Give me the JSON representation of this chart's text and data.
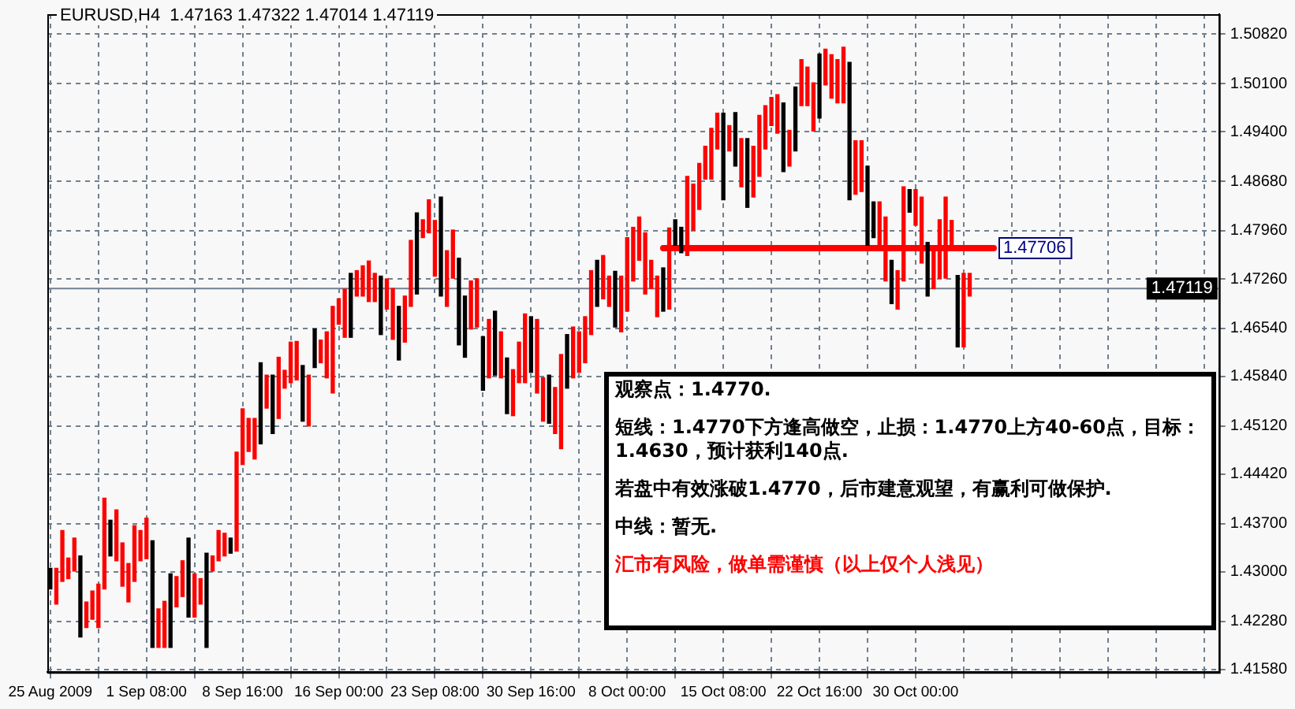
{
  "chart_data": {
    "type": "bar",
    "title": "EURUSD,H4  1.47163 1.47322 1.47014 1.47119",
    "categories": [
      "25 Aug 2009",
      null,
      null,
      null,
      null,
      null,
      null,
      null,
      null,
      null,
      null,
      null,
      null,
      null,
      null,
      null,
      "1 Sep 08:00",
      null,
      null,
      null,
      null,
      null,
      null,
      null,
      null,
      null,
      null,
      null,
      null,
      null,
      null,
      null,
      "8 Sep 16:00",
      null,
      null,
      null,
      null,
      null,
      null,
      null,
      null,
      null,
      null,
      null,
      null,
      null,
      null,
      null,
      "16 Sep 00:00",
      null,
      null,
      null,
      null,
      null,
      null,
      null,
      null,
      null,
      null,
      null,
      null,
      null,
      null,
      null,
      "23 Sep 08:00",
      null,
      null,
      null,
      null,
      null,
      null,
      null,
      null,
      null,
      null,
      null,
      null,
      null,
      null,
      null,
      "30 Sep 16:00",
      null,
      null,
      null,
      null,
      null,
      null,
      null,
      null,
      null,
      null,
      null,
      null,
      null,
      null,
      null,
      "8 Oct 00:00",
      null,
      null,
      null,
      null,
      null,
      null,
      null,
      null,
      null,
      null,
      null,
      null,
      null,
      null,
      null,
      "15 Oct 08:00",
      null,
      null,
      null,
      null,
      null,
      null,
      null,
      null,
      null,
      null,
      null,
      null,
      null,
      null,
      null,
      "22 Oct 16:00",
      null,
      null,
      null,
      null,
      null,
      null,
      null,
      null,
      null,
      null,
      null,
      null,
      null,
      null,
      null,
      "30 Oct 00:00",
      null,
      null,
      null,
      null,
      null,
      null,
      null,
      null,
      null,
      null,
      null,
      null,
      null,
      null,
      null,
      null,
      null,
      null,
      null,
      null,
      null,
      null,
      null,
      null,
      null,
      null,
      null,
      null,
      null,
      null,
      null,
      null,
      null,
      null,
      null,
      null,
      null,
      null,
      null,
      null,
      null,
      null,
      null,
      null,
      null,
      null,
      null,
      null,
      null,
      null
    ],
    "series": [
      {
        "values": [
          0.003,
          0.0052,
          0.0074,
          0.003,
          0.0048,
          0.0118,
          0.0037,
          0.0041,
          0.0063,
          0.0132,
          0.0052,
          0.0074,
          0.0063,
          0.0056,
          0.0081,
          0.0044,
          0.0059,
          0.0155,
          0.0056,
          0.0067,
          0.0107,
          0.0044,
          0.0052,
          0.0115,
          0.0063,
          0.0037,
          0.0137,
          0.0022,
          0.0044,
          0.0033,
          0.0022,
          0.0144,
          0.0081,
          0.0048,
          0.0059,
          0.0118,
          0.0048,
          0.0085,
          0.0089,
          0.0026,
          0.0059,
          0.0056,
          0.0081,
          0.0074,
          0.0056,
          0.0033,
          0.0067,
          0.0126,
          0.0037,
          0.007,
          0.0093,
          0.0037,
          0.0044,
          0.0059,
          0.0041,
          0.0085,
          0.0044,
          0.0074,
          0.0078,
          0.0067,
          0.0096,
          0.0118,
          0.0026,
          0.0048,
          0.0081,
          0.0144,
          0.0081,
          0.007,
          0.0126,
          0.0089,
          0.007,
          0.007,
          0.0078,
          0.0085,
          0.0093,
          0.0067,
          0.0081,
          0.0067,
          0.0059,
          0.01,
          0.0081,
          0.0107,
          0.0063,
          0.007,
          0.0067,
          0.0137,
          0.0078,
          0.0074,
          0.0059,
          0.0067,
          0.0093,
          0.0067,
          0.0063,
          0.0044,
          0.0081,
          0.0081,
          0.0107,
          0.0078,
          0.0063,
          0.0089,
          0.0041,
          0.0059,
          0.0063,
          0.0118,
          0.0037,
          0.0037,
          0.0115,
          0.0067,
          0.0067,
          0.0048,
          0.0074,
          0.0052,
          0.0126,
          0.0037,
          0.0078,
          0.007,
          0.01,
          0.0074,
          0.0089,
          0.0063,
          0.0041,
          0.0056,
          0.01,
          0.0052,
          0.0093,
          0.0067,
          0.0056,
          0.007,
          0.0093,
          0.0052,
          0.0063,
          0.0063,
          0.0081,
          0.02,
          0.0078,
          0.0074,
          0.0115,
          0.0052,
          0.0067,
          0.0093,
          0.0063,
          0.0056,
          0.0137,
          0.0033,
          0.0052,
          0.0096,
          0.0078,
          0.0056,
          0.0085,
          0.0118,
          0.0044,
          0.0104,
          0.0107,
          0.0033,
          null,
          null,
          null,
          null,
          null,
          null,
          null,
          null,
          null,
          null,
          null,
          null,
          null,
          null,
          null,
          null,
          null,
          null,
          null,
          null,
          null,
          null,
          null,
          null,
          null,
          null,
          null,
          null,
          null,
          null,
          null,
          null,
          null,
          null,
          null,
          null,
          null,
          null,
          null,
          null,
          null
        ],
        "base": [
          1.4275,
          1.4253,
          1.4286,
          1.429,
          1.4301,
          1.4205,
          1.4219,
          1.4231,
          1.4219,
          1.4275,
          1.4323,
          1.4316,
          1.4279,
          1.4256,
          1.4286,
          1.4316,
          1.4319,
          1.419,
          1.419,
          1.419,
          1.419,
          1.4249,
          1.4264,
          1.4234,
          1.4234,
          1.4253,
          1.419,
          1.4301,
          1.4316,
          1.4323,
          1.4327,
          1.433,
          1.4456,
          1.4475,
          1.4464,
          1.4486,
          1.4538,
          1.4501,
          1.4523,
          1.4567,
          1.4575,
          1.4579,
          1.4519,
          1.4512,
          1.4597,
          1.4604,
          1.4582,
          1.456,
          1.466,
          1.4641,
          1.4641,
          1.4701,
          1.4701,
          1.4693,
          1.4693,
          1.4645,
          1.4682,
          1.4638,
          1.4608,
          1.4634,
          1.4686,
          1.4704,
          1.4786,
          1.4793,
          1.473,
          1.4701,
          1.4686,
          1.4727,
          1.463,
          1.4612,
          1.4653,
          1.4656,
          1.4564,
          1.4582,
          1.4586,
          1.4582,
          1.453,
          1.4527,
          1.4575,
          1.4575,
          1.459,
          1.456,
          1.4519,
          1.4516,
          1.4501,
          1.4479,
          1.4567,
          1.4582,
          1.459,
          1.4604,
          1.4645,
          1.4686,
          1.4697,
          1.4686,
          1.4656,
          1.4649,
          1.4679,
          1.4723,
          1.4753,
          1.4704,
          1.4712,
          1.4671,
          1.4679,
          1.4682,
          1.4775,
          1.4764,
          1.476,
          1.4797,
          1.4827,
          1.4871,
          1.4871,
          1.4915,
          1.4841,
          1.4912,
          1.489,
          1.486,
          1.483,
          1.4845,
          1.4875,
          1.4915,
          1.4949,
          1.4938,
          1.4882,
          1.489,
          1.4912,
          1.4978,
          1.4978,
          1.4941,
          1.496,
          1.5008,
          1.4989,
          1.4982,
          1.4982,
          1.4841,
          1.4849,
          1.4853,
          1.4775,
          1.4786,
          1.4771,
          1.4723,
          1.469,
          1.4682,
          1.4723,
          1.4823,
          1.4804,
          1.4749,
          1.4701,
          1.4712,
          1.4727,
          1.4727,
          1.4767,
          1.4627,
          1.4627,
          1.4701,
          null,
          null,
          null,
          null,
          null,
          null,
          null,
          null,
          null,
          null,
          null,
          null,
          null,
          null,
          null,
          null,
          null,
          null,
          null,
          null,
          null,
          null,
          null,
          null,
          null,
          null,
          null,
          null,
          null,
          null,
          null,
          null,
          null,
          null,
          null,
          null,
          null,
          null,
          null,
          null,
          null
        ],
        "colors": [
          "#000000",
          "#ff0000",
          "#ff0000",
          "#ff0000",
          "#ff0000",
          "#000000",
          "#ff0000",
          "#ff0000",
          "#ff0000",
          "#ff0000",
          "#000000",
          "#ff0000",
          "#ff0000",
          "#ff0000",
          "#ff0000",
          "#ff0000",
          "#ff0000",
          "#000000",
          "#ff0000",
          "#ff0000",
          "#000000",
          "#ff0000",
          "#ff0000",
          "#000000",
          "#ff0000",
          "#ff0000",
          "#000000",
          "#ff0000",
          "#ff0000",
          "#ff0000",
          "#000000",
          "#ff0000",
          "#ff0000",
          "#ff0000",
          "#ff0000",
          "#000000",
          "#ff0000",
          "#000000",
          "#ff0000",
          "#ff0000",
          "#ff0000",
          "#ff0000",
          "#000000",
          "#ff0000",
          "#000000",
          "#ff0000",
          "#ff0000",
          "#ff0000",
          "#ff0000",
          "#ff0000",
          "#000000",
          "#ff0000",
          "#ff0000",
          "#ff0000",
          "#ff0000",
          "#000000",
          "#ff0000",
          "#ff0000",
          "#000000",
          "#ff0000",
          "#ff0000",
          "#000000",
          "#ff0000",
          "#ff0000",
          "#ff0000",
          "#000000",
          "#ff0000",
          "#ff0000",
          "#000000",
          "#000000",
          "#ff0000",
          "#ff0000",
          "#000000",
          "#ff0000",
          "#000000",
          "#ff0000",
          "#000000",
          "#ff0000",
          "#ff0000",
          "#ff0000",
          "#000000",
          "#ff0000",
          "#ff0000",
          "#000000",
          "#ff0000",
          "#ff0000",
          "#000000",
          "#ff0000",
          "#ff0000",
          "#ff0000",
          "#ff0000",
          "#000000",
          "#ff0000",
          "#ff0000",
          "#000000",
          "#ff0000",
          "#ff0000",
          "#ff0000",
          "#ff0000",
          "#ff0000",
          "#ff0000",
          "#ff0000",
          "#000000",
          "#ff0000",
          "#000000",
          "#000000",
          "#ff0000",
          "#ff0000",
          "#ff0000",
          "#ff0000",
          "#ff0000",
          "#ff0000",
          "#000000",
          "#ff0000",
          "#000000",
          "#ff0000",
          "#000000",
          "#ff0000",
          "#ff0000",
          "#ff0000",
          "#ff0000",
          "#ff0000",
          "#000000",
          "#ff0000",
          "#000000",
          "#ff0000",
          "#ff0000",
          "#ff0000",
          "#000000",
          "#ff0000",
          "#ff0000",
          "#ff0000",
          "#ff0000",
          "#000000",
          "#ff0000",
          "#ff0000",
          "#000000",
          "#000000",
          "#ff0000",
          "#ff0000",
          "#000000",
          "#ff0000",
          "#ff0000",
          "#000000",
          "#ff0000",
          "#ff0000",
          "#000000",
          "#ff0000",
          "#ff0000",
          "#ff0000",
          "#ff0000",
          "#000000",
          "#ff0000",
          "#ff0000",
          null,
          null,
          null,
          null,
          null,
          null,
          null,
          null,
          null,
          null,
          null,
          null,
          null,
          null,
          null,
          null,
          null,
          null,
          null,
          null,
          null,
          null,
          null,
          null,
          null,
          null,
          null,
          null,
          null,
          null,
          null,
          null,
          null,
          null,
          null,
          null,
          null,
          null,
          null,
          null,
          null
        ]
      },
      {
        "type": "line",
        "name": "1.47706",
        "color": "#ff0000",
        "values": [
          null,
          null,
          null,
          null,
          null,
          null,
          null,
          null,
          null,
          null,
          null,
          null,
          null,
          null,
          null,
          null,
          null,
          null,
          null,
          null,
          null,
          null,
          null,
          null,
          null,
          null,
          null,
          null,
          null,
          null,
          null,
          null,
          null,
          null,
          null,
          null,
          null,
          null,
          null,
          null,
          null,
          null,
          null,
          null,
          null,
          null,
          null,
          null,
          null,
          null,
          null,
          null,
          null,
          null,
          null,
          null,
          null,
          null,
          null,
          null,
          null,
          null,
          null,
          null,
          null,
          null,
          null,
          null,
          null,
          null,
          null,
          null,
          null,
          null,
          null,
          null,
          null,
          null,
          null,
          null,
          null,
          null,
          null,
          null,
          null,
          null,
          null,
          null,
          null,
          null,
          null,
          null,
          null,
          null,
          null,
          null,
          null,
          null,
          null,
          null,
          null,
          null,
          1.47706,
          1.47706,
          1.47706,
          1.47706,
          1.47706,
          1.47706,
          1.47706,
          1.47706,
          1.47706,
          1.47706,
          1.47706,
          1.47706,
          1.47706,
          1.47706,
          1.47706,
          1.47706,
          1.47706,
          1.47706,
          1.47706,
          1.47706,
          1.47706,
          1.47706,
          1.47706,
          1.47706,
          1.47706,
          1.47706,
          1.47706,
          1.47706,
          1.47706,
          1.47706,
          1.47706,
          1.47706,
          1.47706,
          1.47706,
          1.47706,
          1.47706,
          1.47706,
          1.47706,
          1.47706,
          1.47706,
          1.47706,
          1.47706,
          1.47706,
          1.47706,
          1.47706,
          1.47706,
          1.47706,
          1.47706,
          1.47706,
          1.47706,
          1.47706,
          1.47706,
          1.47706,
          1.47706,
          1.47706,
          1.47706,
          null,
          null,
          null,
          null,
          null,
          null,
          null,
          null,
          null,
          null,
          null,
          null,
          null,
          null,
          null,
          null,
          null,
          null,
          null,
          null,
          null,
          null,
          null,
          null,
          null,
          null,
          null,
          null,
          null,
          null,
          null,
          null,
          null,
          null,
          null,
          null,
          null
        ]
      }
    ],
    "ylim": [
      1.4154,
      1.5111
    ],
    "yticks": [
      {
        "value": 1.4158,
        "label": "1.41580"
      },
      {
        "value": 1.4228,
        "label": "1.42280"
      },
      {
        "value": 1.43,
        "label": "1.43000"
      },
      {
        "value": 1.437,
        "label": "1.43700"
      },
      {
        "value": 1.4442,
        "label": "1.44420"
      },
      {
        "value": 1.4512,
        "label": "1.45120"
      },
      {
        "value": 1.4584,
        "label": "1.45840"
      },
      {
        "value": 1.4654,
        "label": "1.46540"
      },
      {
        "value": 1.4726,
        "label": "1.47260"
      },
      {
        "value": 1.4796,
        "label": "1.47960"
      },
      {
        "value": 1.4868,
        "label": "1.48680"
      },
      {
        "value": 1.494,
        "label": "1.49400"
      },
      {
        "value": 1.501,
        "label": "1.50100"
      },
      {
        "value": 1.5082,
        "label": "1.50820"
      }
    ],
    "grid": true,
    "ref_lines": [
      {
        "axis": "y",
        "value": 1.47119,
        "label": "1.47119",
        "color": "#708090"
      }
    ],
    "annotations": [
      "观察点：1.4770.",
      "短线：1.4770下方逢高做空，止损：1.4770上方40-60点，目标：1.4630，预计获利140点.",
      "若盘中有效涨破1.4770，后市建意观望，有赢利可做保护.",
      "中线：暂无.",
      "汇市有风险，做单需谨慎（以上仅个人浅见）"
    ]
  }
}
